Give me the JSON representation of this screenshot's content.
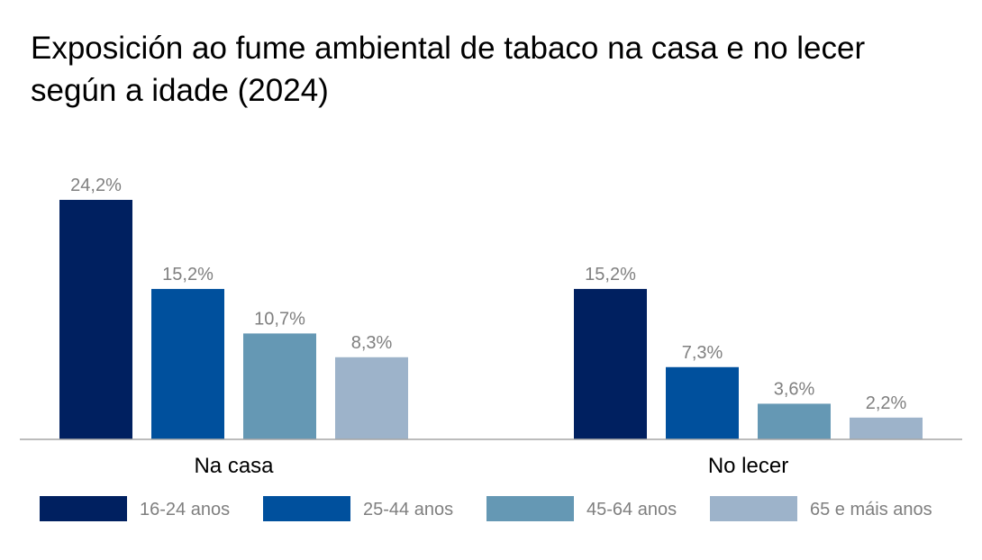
{
  "chart_data": {
    "type": "bar",
    "title": "Exposición ao fume ambiental de tabaco na casa e no lecer según a idade (2024)",
    "categories": [
      "Na casa",
      "No lecer"
    ],
    "series": [
      {
        "name": "16-24 anos",
        "color": "#002060",
        "values": [
          24.2,
          15.2
        ],
        "labels": [
          "24,2%",
          "15,2%"
        ]
      },
      {
        "name": "25-44 anos",
        "color": "#00509d",
        "values": [
          15.2,
          7.3
        ],
        "labels": [
          "15,2%",
          "7,3%"
        ]
      },
      {
        "name": "45-64 anos",
        "color": "#6598b4",
        "values": [
          10.7,
          3.6
        ],
        "labels": [
          "10,7%",
          "3,6%"
        ]
      },
      {
        "name": "65 e máis anos",
        "color": "#9db3ca",
        "values": [
          8.3,
          2.2
        ],
        "labels": [
          "8,3%",
          "2,2%"
        ]
      }
    ],
    "xlabel": "",
    "ylabel": "",
    "ylim": [
      0,
      24.2
    ],
    "grid": false,
    "legend_position": "bottom"
  }
}
